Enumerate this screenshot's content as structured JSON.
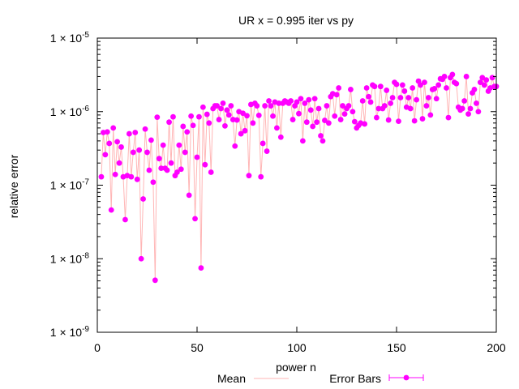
{
  "chart_data": {
    "type": "scatter",
    "title": "UR x = 0.995 iter vs py",
    "xlabel": "power n",
    "ylabel": "relative error",
    "xlim": [
      0,
      200
    ],
    "ylim": [
      1e-09,
      1e-05
    ],
    "yscale": "log",
    "grid": false,
    "legend_position": "bottom",
    "x_ticks": [
      {
        "value": 0,
        "label": "0"
      },
      {
        "value": 50,
        "label": "50"
      },
      {
        "value": 100,
        "label": "100"
      },
      {
        "value": 150,
        "label": "150"
      },
      {
        "value": 200,
        "label": "200"
      }
    ],
    "y_ticks": [
      {
        "value": 1e-09,
        "mant": "1 × 10",
        "exp": "-9"
      },
      {
        "value": 1e-08,
        "mant": "1 × 10",
        "exp": "-8"
      },
      {
        "value": 1e-07,
        "mant": "1 × 10",
        "exp": "-7"
      },
      {
        "value": 1e-06,
        "mant": "1 × 10",
        "exp": "-6"
      },
      {
        "value": 1e-05,
        "mant": "1 × 10",
        "exp": "-5"
      }
    ],
    "series": [
      {
        "name": "Mean",
        "style": "line",
        "color": "#ffb6b6",
        "ref": "errorbars"
      },
      {
        "name": "Error Bars",
        "style": "points",
        "color": "#ff00ff",
        "x": [
          2,
          3,
          4,
          5,
          6,
          7,
          8,
          9,
          10,
          11,
          12,
          13,
          14,
          15,
          16,
          17,
          18,
          19,
          20,
          21,
          22,
          23,
          24,
          25,
          26,
          27,
          28,
          29,
          30,
          31,
          32,
          33,
          34,
          35,
          36,
          37,
          38,
          39,
          40,
          41,
          42,
          43,
          44,
          45,
          46,
          47,
          48,
          49,
          50,
          51,
          52,
          53,
          54,
          55,
          56,
          57,
          58,
          59,
          60,
          61,
          62,
          63,
          64,
          65,
          66,
          67,
          68,
          69,
          70,
          71,
          72,
          73,
          74,
          75,
          76,
          77,
          78,
          79,
          80,
          81,
          82,
          83,
          84,
          85,
          86,
          87,
          88,
          89,
          90,
          91,
          92,
          93,
          94,
          95,
          96,
          97,
          98,
          99,
          100,
          101,
          102,
          103,
          104,
          105,
          106,
          107,
          108,
          109,
          110,
          111,
          112,
          113,
          114,
          115,
          116,
          117,
          118,
          119,
          120,
          121,
          122,
          123,
          124,
          125,
          126,
          127,
          128,
          129,
          130,
          131,
          132,
          133,
          134,
          135,
          136,
          137,
          138,
          139,
          140,
          141,
          142,
          143,
          144,
          145,
          146,
          147,
          148,
          149,
          150,
          151,
          152,
          153,
          154,
          155,
          156,
          157,
          158,
          159,
          160,
          161,
          162,
          163,
          164,
          165,
          166,
          167,
          168,
          169,
          170,
          171,
          172,
          173,
          174,
          175,
          176,
          177,
          178,
          179,
          180,
          181,
          182,
          183,
          184,
          185,
          186,
          187,
          188,
          189,
          190,
          191,
          192,
          193,
          194,
          195,
          196,
          197,
          198,
          199,
          200
        ],
        "y": [
          1.3e-07,
          5.2e-07,
          2.6e-07,
          5.3e-07,
          3.7e-07,
          4.6e-08,
          6e-07,
          1.4e-07,
          3.9e-07,
          2e-07,
          3.3e-07,
          1.3e-07,
          3.4e-08,
          1.35e-07,
          5e-07,
          1.3e-07,
          2.8e-07,
          5.2e-07,
          1.2e-07,
          3e-07,
          1e-08,
          6.5e-08,
          5.8e-07,
          2.8e-07,
          1.6e-07,
          4.1e-07,
          1.1e-07,
          5.1e-09,
          8.4e-07,
          2.3e-07,
          1.7e-07,
          3.5e-07,
          1.7e-07,
          1.6e-07,
          7.2e-07,
          2e-07,
          8.5e-07,
          1.35e-07,
          1.5e-07,
          3.5e-07,
          1.65e-07,
          6.3e-07,
          2.8e-07,
          5.3e-07,
          7.3e-08,
          8.7e-07,
          6.5e-07,
          3.5e-08,
          2.4e-07,
          8.5e-07,
          7.5e-09,
          1.15e-06,
          1.9e-07,
          9.2e-07,
          7e-07,
          1.5e-07,
          1.1e-06,
          1.2e-06,
          1.2e-06,
          7.8e-07,
          1.1e-06,
          1.3e-06,
          6.4e-07,
          1.05e-06,
          9e-07,
          1.2e-06,
          7.8e-07,
          3.4e-07,
          7.7e-07,
          1e-06,
          5e-07,
          9.5e-07,
          5.5e-07,
          8.8e-07,
          1.35e-07,
          1.25e-06,
          7e-07,
          1.3e-06,
          1.2e-06,
          8.9e-07,
          1.3e-07,
          3.7e-07,
          1.2e-06,
          2.9e-07,
          1.4e-06,
          1.2e-06,
          8.7e-07,
          1.35e-06,
          6e-07,
          1.3e-06,
          4.5e-07,
          1.3e-06,
          1.4e-06,
          1.35e-06,
          1.3e-06,
          1.4e-06,
          7.8e-07,
          1.2e-06,
          1.35e-06,
          9.4e-07,
          1.5e-06,
          4e-07,
          1.3e-06,
          7.2e-07,
          1.45e-06,
          1.05e-06,
          6.3e-07,
          1.5e-06,
          7.2e-07,
          1.1e-06,
          4.7e-07,
          4e-07,
          7.6e-07,
          1.2e-06,
          7e-07,
          1.6e-06,
          1.75e-06,
          8.7e-07,
          1.7e-06,
          2.1e-06,
          7.8e-07,
          1.2e-06,
          9.3e-07,
          1.1e-06,
          1.2e-06,
          2e-06,
          1e-06,
          7.3e-07,
          6e-07,
          6.5e-07,
          7e-07,
          1.4e-06,
          6.8e-07,
          2.1e-06,
          1.6e-06,
          1.35e-06,
          2.3e-06,
          2.2e-06,
          8.3e-07,
          1.1e-06,
          2.2e-06,
          1.1e-06,
          1.2e-06,
          1.95e-06,
          7.7e-07,
          1.3e-06,
          1.55e-06,
          2.5e-06,
          2.35e-06,
          7.4e-07,
          1.55e-06,
          2.3e-06,
          1.9e-06,
          1.15e-06,
          1.55e-06,
          1.1e-06,
          2.1e-06,
          7.5e-07,
          1.45e-06,
          2.6e-06,
          2.3e-06,
          8e-07,
          2.5e-06,
          1.2e-06,
          1.55e-06,
          9e-07,
          2e-06,
          2.05e-06,
          1.5e-06,
          2.3e-06,
          2.8e-06,
          2.75e-06,
          3e-06,
          2.1e-06,
          8.3e-07,
          2.9e-06,
          3.2e-06,
          2.5e-06,
          2.4e-06,
          1.15e-06,
          1.05e-06,
          1.1e-06,
          1.4e-06,
          3e-06,
          9.3e-07,
          1.1e-06,
          1.8e-06,
          2e-06,
          1.3e-06,
          1e-06,
          2.5e-06,
          2.9e-06,
          2.3e-06,
          2.7e-06,
          1.9e-06,
          2.1e-06,
          2.9e-06,
          2.2e-06,
          2.2e-06
        ]
      }
    ]
  }
}
